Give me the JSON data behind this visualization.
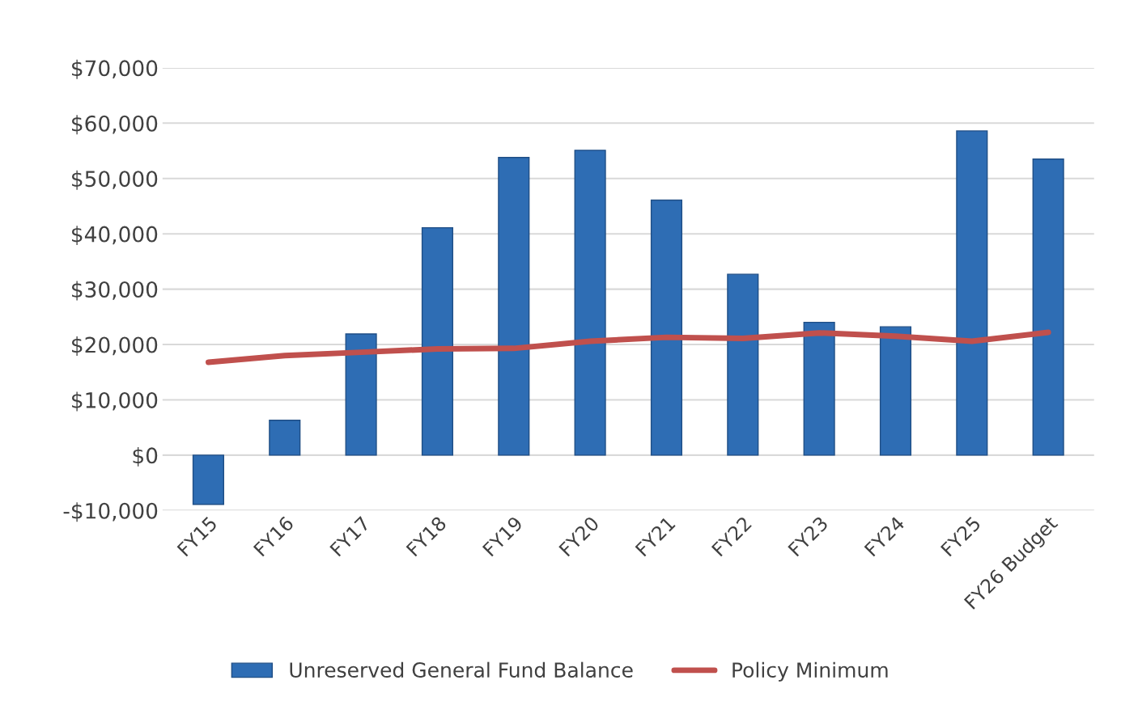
{
  "chart_data": {
    "type": "bar",
    "categories": [
      "FY15",
      "FY16",
      "FY17",
      "FY18",
      "FY19",
      "FY20",
      "FY21",
      "FY22",
      "FY23",
      "FY24",
      "FY25",
      "FY26 Budget"
    ],
    "series": [
      {
        "name": "Unreserved General Fund Balance",
        "color": "#2e6db4",
        "values": [
          -8900,
          6300,
          21900,
          41100,
          53800,
          55100,
          46100,
          32700,
          24000,
          23200,
          58600,
          53500
        ]
      },
      {
        "name": "Policy Minimum",
        "type": "line",
        "color": "#c0504d",
        "values": [
          16800,
          18000,
          18600,
          19200,
          19300,
          20600,
          21300,
          21100,
          22100,
          21500,
          20600,
          22200
        ]
      }
    ],
    "ylim": [
      -10000,
      70000
    ],
    "yticks": [
      {
        "value": -10000,
        "label": "-$10,000"
      },
      {
        "value": 0,
        "label": "$0"
      },
      {
        "value": 10000,
        "label": "$10,000"
      },
      {
        "value": 20000,
        "label": "$20,000"
      },
      {
        "value": 30000,
        "label": "$30,000"
      },
      {
        "value": 40000,
        "label": "$40,000"
      },
      {
        "value": 50000,
        "label": "$50,000"
      },
      {
        "value": 60000,
        "label": "$60,000"
      },
      {
        "value": 70000,
        "label": "$70,000"
      }
    ],
    "grid": "y",
    "legend": "bottom"
  }
}
